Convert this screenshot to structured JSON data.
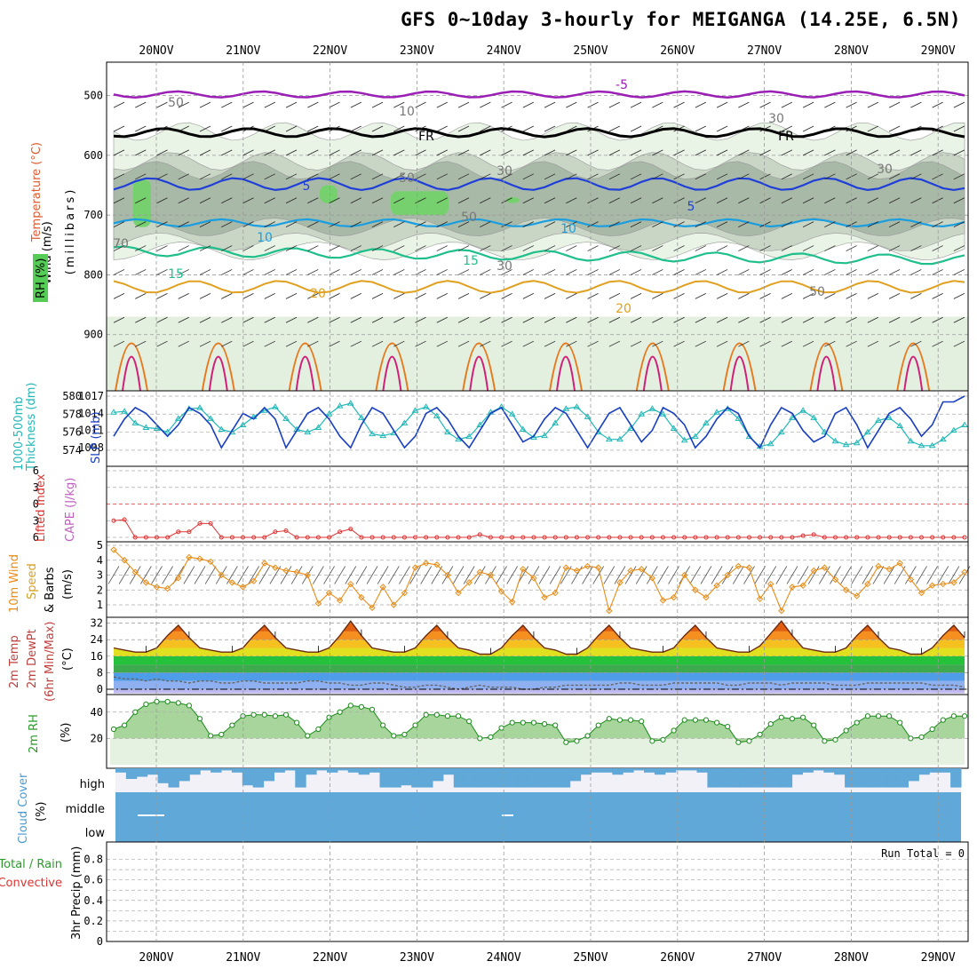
{
  "title": "GFS 0~10day 3-hourly for MEIGANGA (14.25E, 6.5N)",
  "dates": [
    "20NOV",
    "21NOV",
    "22NOV",
    "23NOV",
    "24NOV",
    "25NOV",
    "26NOV",
    "27NOV",
    "28NOV",
    "29NOV"
  ],
  "colors": {
    "temp_warm": "#ff8c00",
    "temp_hot": "#ffd000",
    "rh": "#33aa33",
    "slp": "#1a3fbf",
    "thickness": "#22b7b7",
    "wind": "#e88b17",
    "cloud": "#5fa8d8",
    "lifted": "#dd3333"
  },
  "labels": {
    "upper_wind": "Wind (m/s)",
    "upper_temp": "Temperature (°C)",
    "upper_rh": "RH (%)",
    "upper_units": "(millibars)",
    "slp": "SLP (mb)",
    "thickness_a": "1000-500mb",
    "thickness_b": "Thickness (dm)",
    "lifted": "Lifted Index",
    "cape": "CAPE (J/kg)",
    "wind10_a": "10m Wind",
    "wind10_b": "Speed",
    "wind10_c": "& Barbs",
    "wind10_d": "(m/s)",
    "temp_a": "2m Temp",
    "temp_b": "2m DewPt",
    "temp_c": "(6hr Min/Max)",
    "temp_d": "(°C)",
    "rh2_a": "2m RH",
    "rh2_b": "(%)",
    "cloud_a": "Cloud Cover",
    "cloud_b": "(%)",
    "cloud_high": "high",
    "cloud_middle": "middle",
    "cloud_low": "low",
    "precip_a": "Total / Rain",
    "precip_b": "Convective",
    "precip_c": "3hr Precip (mm)",
    "run_total": "Run Total = 0"
  },
  "contour_labels": {
    "t_minus5": "-5",
    "t_fr": "FR",
    "t_5": "5",
    "t_10": "10",
    "t_15": "15",
    "t_20": "20",
    "rh_30": "30",
    "rh_50": "50",
    "rh_10": "10",
    "rh_70": "70"
  },
  "chart_data": [
    {
      "type": "heatmap",
      "name_shown": "upper-air cross section",
      "y_ticks": [
        500,
        600,
        700,
        800,
        900
      ],
      "y_range": [
        1000,
        450
      ],
      "contours": {
        "temperature": [
          -5,
          0,
          5,
          10,
          15,
          20
        ],
        "rh": [
          10,
          30,
          50,
          70
        ]
      }
    },
    {
      "type": "line",
      "left_ticks": [
        574,
        576,
        578,
        580
      ],
      "right_ticks": [
        1008,
        1011,
        1014,
        1017
      ],
      "slp": [
        1010,
        1013,
        1015,
        1014,
        1012,
        1010,
        1012,
        1015,
        1014,
        1012,
        1008,
        1011,
        1014,
        1013,
        1015,
        1013,
        1008,
        1011,
        1014,
        1015,
        1013,
        1010,
        1008,
        1012,
        1015,
        1014,
        1011,
        1008,
        1010,
        1014,
        1015,
        1013,
        1010,
        1008,
        1011,
        1014,
        1015,
        1012,
        1009,
        1010,
        1013,
        1015,
        1014,
        1011,
        1008,
        1011,
        1014,
        1015,
        1012,
        1009,
        1011,
        1015,
        1014,
        1012,
        1008,
        1010,
        1013,
        1015,
        1014,
        1010,
        1008,
        1012,
        1015,
        1014,
        1011,
        1009,
        1010,
        1014,
        1015,
        1012,
        1008,
        1011,
        1014,
        1015,
        1013,
        1010,
        1012,
        1016,
        1016,
        1017
      ],
      "thickness": [
        578.2,
        578.3,
        577.0,
        576.5,
        576.4,
        576.0,
        577.5,
        578.6,
        578.7,
        577.5,
        576.3,
        576.0,
        576.8,
        577.7,
        578.4,
        578.8,
        577.5,
        576.3,
        576.0,
        576.5,
        578.0,
        578.9,
        579.2,
        577.6,
        575.8,
        575.6,
        575.9,
        577.0,
        578.4,
        578.8,
        577.8,
        576.0,
        575.2,
        575.5,
        576.8,
        578.2,
        578.8,
        578.0,
        576.3,
        575.4,
        575.6,
        577.0,
        578.6,
        578.8,
        577.7,
        576.0,
        575.2,
        575.2,
        576.4,
        578.0,
        578.6,
        578.0,
        576.4,
        575.1,
        575.5,
        577.0,
        578.2,
        578.6,
        577.5,
        575.5,
        574.4,
        574.7,
        576.0,
        577.6,
        578.4,
        577.6,
        576.0,
        575.0,
        574.6,
        574.8,
        576.0,
        577.3,
        577.6,
        576.7,
        575.0,
        574.5,
        574.5,
        575.2,
        576.2,
        576.8
      ]
    },
    {
      "type": "line",
      "name_shown": "Lifted Index / CAPE",
      "y_ticks": [
        -6,
        -3,
        0,
        3,
        6
      ],
      "lifted_index": [
        3,
        2.8,
        6,
        6,
        6,
        6,
        5,
        5,
        3.5,
        3.5,
        6,
        6,
        6,
        6,
        6,
        5,
        4.8,
        6,
        6,
        6,
        6,
        5,
        4.5,
        6,
        6,
        6,
        6,
        6,
        6,
        6,
        6,
        6,
        6,
        6,
        5.5,
        6,
        6,
        6,
        6,
        6,
        6,
        6,
        6,
        6,
        6,
        6,
        6,
        6,
        6,
        6,
        6,
        6,
        6,
        6,
        6,
        6,
        6,
        6,
        6,
        6,
        6,
        6,
        6,
        6,
        5.7,
        5.5,
        6,
        6,
        6,
        6,
        6,
        6,
        6,
        6,
        6,
        6,
        6,
        6,
        6,
        6
      ],
      "cape": []
    },
    {
      "type": "line",
      "y_ticks": [
        1,
        2,
        3,
        4,
        5
      ],
      "speed": [
        4.7,
        4.0,
        3.2,
        2.5,
        2.2,
        2.1,
        2.8,
        4.2,
        4.1,
        3.9,
        3.0,
        2.5,
        2.2,
        2.6,
        3.8,
        3.5,
        3.3,
        3.2,
        3.0,
        1.1,
        1.8,
        1.3,
        2.4,
        1.5,
        0.8,
        2.2,
        1.0,
        1.8,
        3.5,
        3.8,
        3.7,
        3.0,
        1.8,
        2.5,
        3.2,
        3.0,
        1.9,
        1.2,
        3.4,
        2.8,
        1.5,
        1.8,
        3.5,
        3.3,
        3.6,
        3.5,
        0.6,
        2.5,
        3.3,
        3.4,
        2.8,
        1.3,
        1.5,
        3.0,
        2.0,
        1.5,
        2.3,
        3.0,
        3.6,
        3.5,
        1.4,
        2.4,
        0.6,
        2.2,
        2.3,
        3.3,
        3.5,
        2.7,
        2.0,
        1.6,
        2.4,
        3.6,
        3.4,
        3.8,
        2.7,
        1.8,
        2.3,
        2.4,
        2.5,
        3.2
      ]
    },
    {
      "type": "area",
      "y_ticks": [
        0,
        8,
        16,
        24,
        32
      ],
      "temp": [
        20,
        19,
        18,
        18,
        20,
        26,
        31,
        25,
        20,
        19,
        18,
        18,
        20,
        26,
        31,
        25,
        20,
        19,
        18,
        18,
        20,
        26,
        33,
        26,
        20,
        19,
        18,
        18,
        20,
        26,
        31,
        25,
        20,
        19,
        17,
        17,
        20,
        26,
        31,
        25,
        20,
        19,
        17,
        17,
        20,
        26,
        31,
        25,
        20,
        19,
        18,
        18,
        20,
        26,
        31,
        25,
        20,
        19,
        18,
        18,
        21,
        27,
        33,
        26,
        20,
        19,
        18,
        18,
        20,
        26,
        31,
        25,
        20,
        19,
        17,
        17,
        20,
        26,
        31,
        25
      ],
      "dewpt": [
        6,
        5,
        5,
        4,
        5,
        4,
        4,
        3,
        4,
        4,
        3,
        3,
        4,
        4,
        3,
        3,
        3,
        3,
        4,
        4,
        3,
        3,
        2,
        2,
        3,
        3,
        2,
        1,
        1,
        2,
        2,
        1,
        0,
        1,
        2,
        1,
        1,
        1,
        0,
        0,
        1,
        1,
        2,
        2,
        2,
        2,
        2,
        3,
        3,
        2,
        2,
        2,
        3,
        3,
        3,
        3,
        3,
        2,
        2,
        3,
        3,
        3,
        2,
        3,
        3,
        3,
        3,
        2,
        2,
        2,
        3,
        3,
        3,
        3,
        3,
        3,
        2,
        2,
        2,
        1
      ]
    },
    {
      "type": "area",
      "y_ticks": [
        20,
        40
      ],
      "rh": [
        27,
        30,
        40,
        46,
        48,
        48,
        47,
        45,
        35,
        22,
        23,
        30,
        37,
        38,
        38,
        37,
        38,
        32,
        22,
        27,
        36,
        40,
        45,
        44,
        42,
        30,
        22,
        23,
        30,
        38,
        38,
        37,
        37,
        33,
        20,
        21,
        28,
        32,
        32,
        32,
        31,
        30,
        17,
        18,
        22,
        30,
        35,
        34,
        34,
        33,
        18,
        19,
        26,
        34,
        34,
        34,
        32,
        29,
        17,
        18,
        23,
        31,
        36,
        35,
        36,
        30,
        18,
        19,
        26,
        32,
        37,
        37,
        37,
        32,
        20,
        21,
        27,
        34,
        37,
        37
      ]
    },
    {
      "type": "bar",
      "layers": [
        "high",
        "middle",
        "low"
      ],
      "note": "high cloud fraction varies; middle and low near full coverage"
    },
    {
      "type": "bar",
      "y_ticks": [
        0,
        0.2,
        0.4,
        0.6,
        0.8
      ],
      "total": [],
      "convective": []
    }
  ]
}
